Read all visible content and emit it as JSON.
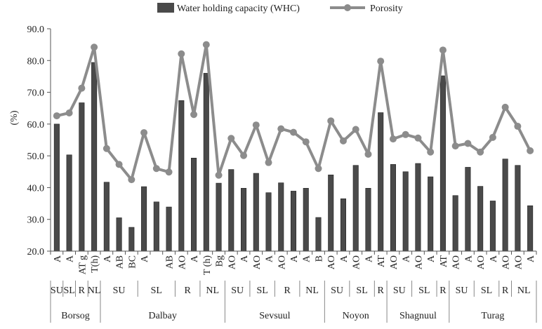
{
  "chart_data": {
    "type": "bar",
    "title": "",
    "xlabel": "",
    "ylabel": "(%)",
    "ylim": [
      20,
      90
    ],
    "yticks": [
      "20.0",
      "30.0",
      "40.0",
      "50.0",
      "60.0",
      "70.0",
      "80.0",
      "90.0"
    ],
    "grid": false,
    "legend_position": "top",
    "legend": [
      "Water holding capacity (WHC)",
      "Porosity"
    ],
    "categories": [
      "A",
      "A",
      "AT g",
      "T(h)",
      "A",
      "AB",
      "BC",
      "A",
      "",
      "AB",
      "AO",
      "A",
      "T (h)",
      "Bg",
      "AO",
      "A",
      "AO",
      "A",
      "AO",
      "A",
      "A",
      "B",
      "AO",
      "A",
      "AO",
      "A",
      "AT",
      "AO",
      "A",
      "AO",
      "A",
      "AT",
      "AO",
      "A",
      "AO",
      "A",
      "AO",
      "AO",
      "A"
    ],
    "category_label_offsets": [
      0,
      0,
      0,
      0,
      0,
      0,
      0,
      0,
      0,
      0,
      0,
      0,
      0,
      0,
      0,
      0,
      0,
      0,
      0,
      0,
      0,
      0,
      0,
      0,
      0,
      0,
      0,
      0,
      0,
      0,
      0,
      0,
      0,
      0,
      0,
      0,
      0,
      0,
      0
    ],
    "groups": [
      {
        "label": "SU",
        "start": 0,
        "end": 0
      },
      {
        "label": "SL",
        "start": 1,
        "end": 1
      },
      {
        "label": "R",
        "start": 2,
        "end": 2
      },
      {
        "label": "NL",
        "start": 3,
        "end": 3
      },
      {
        "label": "SU",
        "start": 4,
        "end": 6
      },
      {
        "label": "SL",
        "start": 7,
        "end": 9
      },
      {
        "label": "R",
        "start": 10,
        "end": 11
      },
      {
        "label": "NL",
        "start": 12,
        "end": 13
      },
      {
        "label": "SU",
        "start": 14,
        "end": 15
      },
      {
        "label": "SL",
        "start": 16,
        "end": 17
      },
      {
        "label": "R",
        "start": 18,
        "end": 19
      },
      {
        "label": "NL",
        "start": 20,
        "end": 21
      },
      {
        "label": "SU",
        "start": 22,
        "end": 23
      },
      {
        "label": "SL",
        "start": 24,
        "end": 25
      },
      {
        "label": "R",
        "start": 26,
        "end": 26
      },
      {
        "label": "SU",
        "start": 27,
        "end": 28
      },
      {
        "label": "SL",
        "start": 29,
        "end": 30
      },
      {
        "label": "R",
        "start": 31,
        "end": 31
      },
      {
        "label": "SU",
        "start": 32,
        "end": 33
      },
      {
        "label": "SL",
        "start": 34,
        "end": 35
      },
      {
        "label": "R",
        "start": 36,
        "end": 36
      },
      {
        "label": "NL",
        "start": 37,
        "end": 38
      }
    ],
    "sites": [
      {
        "label": "Borsog",
        "start": 0,
        "end": 3
      },
      {
        "label": "Dalbay",
        "start": 4,
        "end": 13
      },
      {
        "label": "Sevsuul",
        "start": 14,
        "end": 21
      },
      {
        "label": "Noyon",
        "start": 22,
        "end": 26
      },
      {
        "label": "Shagnuul",
        "start": 27,
        "end": 31
      },
      {
        "label": "Turag",
        "start": 32,
        "end": 38
      }
    ],
    "series": [
      {
        "name": "Water holding capacity (WHC)",
        "type": "bar",
        "color": "#4a4a4a",
        "values": [
          60.0,
          50.3,
          66.7,
          79.4,
          41.7,
          30.5,
          27.5,
          40.3,
          35.5,
          33.9,
          67.4,
          49.3,
          76.0,
          41.4,
          45.7,
          39.8,
          44.5,
          38.4,
          41.5,
          38.9,
          39.8,
          30.6,
          44.0,
          36.5,
          47.0,
          39.8,
          63.6,
          47.3,
          45.0,
          47.6,
          43.4,
          75.2,
          37.5,
          46.4,
          40.4,
          35.8,
          49.0,
          47.0,
          34.3
        ]
      },
      {
        "name": "Porosity",
        "type": "line",
        "color": "#8c8c8c",
        "values": [
          62.6,
          63.5,
          71.3,
          84.2,
          52.3,
          47.3,
          42.5,
          57.3,
          46.0,
          44.9,
          82.1,
          63.0,
          85.0,
          43.9,
          55.5,
          50.1,
          59.7,
          47.9,
          58.5,
          57.4,
          54.4,
          46.0,
          61.0,
          54.7,
          58.3,
          50.5,
          79.8,
          55.3,
          56.7,
          55.6,
          51.2,
          83.3,
          53.1,
          53.9,
          51.2,
          55.8,
          65.3,
          59.3,
          51.6
        ]
      }
    ]
  }
}
